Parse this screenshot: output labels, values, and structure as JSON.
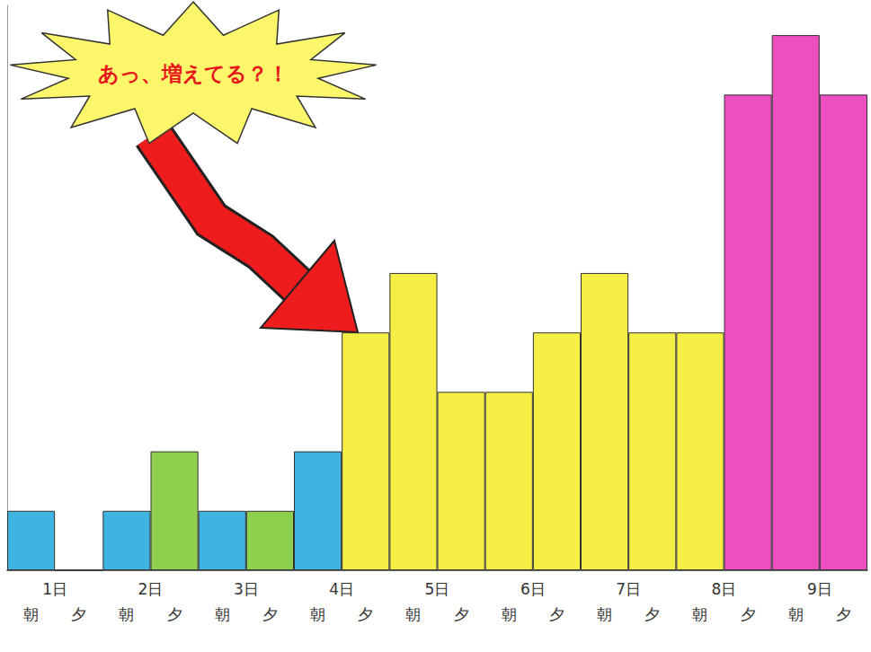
{
  "chart_data": {
    "type": "bar",
    "annotation": "あっ、増えてる？！",
    "days": [
      "1日",
      "2日",
      "3日",
      "4日",
      "5日",
      "6日",
      "7日",
      "8日",
      "9日"
    ],
    "categories": [
      "朝",
      "夕",
      "朝",
      "夕",
      "朝",
      "夕",
      "朝",
      "夕",
      "朝",
      "夕",
      "朝",
      "夕",
      "朝",
      "夕",
      "朝",
      "夕",
      "朝",
      "夕"
    ],
    "values": [
      1,
      0,
      1,
      2,
      1,
      1,
      2,
      4,
      5,
      3,
      3,
      4,
      5,
      4,
      4,
      8,
      9,
      8
    ],
    "colors": [
      "#3fb4e0",
      "#3fb4e0",
      "#3fb4e0",
      "#8fd14f",
      "#3fb4e0",
      "#8fd14f",
      "#3fb4e0",
      "#f5ee45",
      "#f5ee45",
      "#f5ee45",
      "#f5ee45",
      "#f5ee45",
      "#f5ee45",
      "#f5ee45",
      "#f5ee45",
      "#ee4fc0",
      "#ee4fc0",
      "#ee4fc0"
    ],
    "ylim": [
      0,
      9.5
    ],
    "grid": false,
    "tick_labels": "x"
  }
}
